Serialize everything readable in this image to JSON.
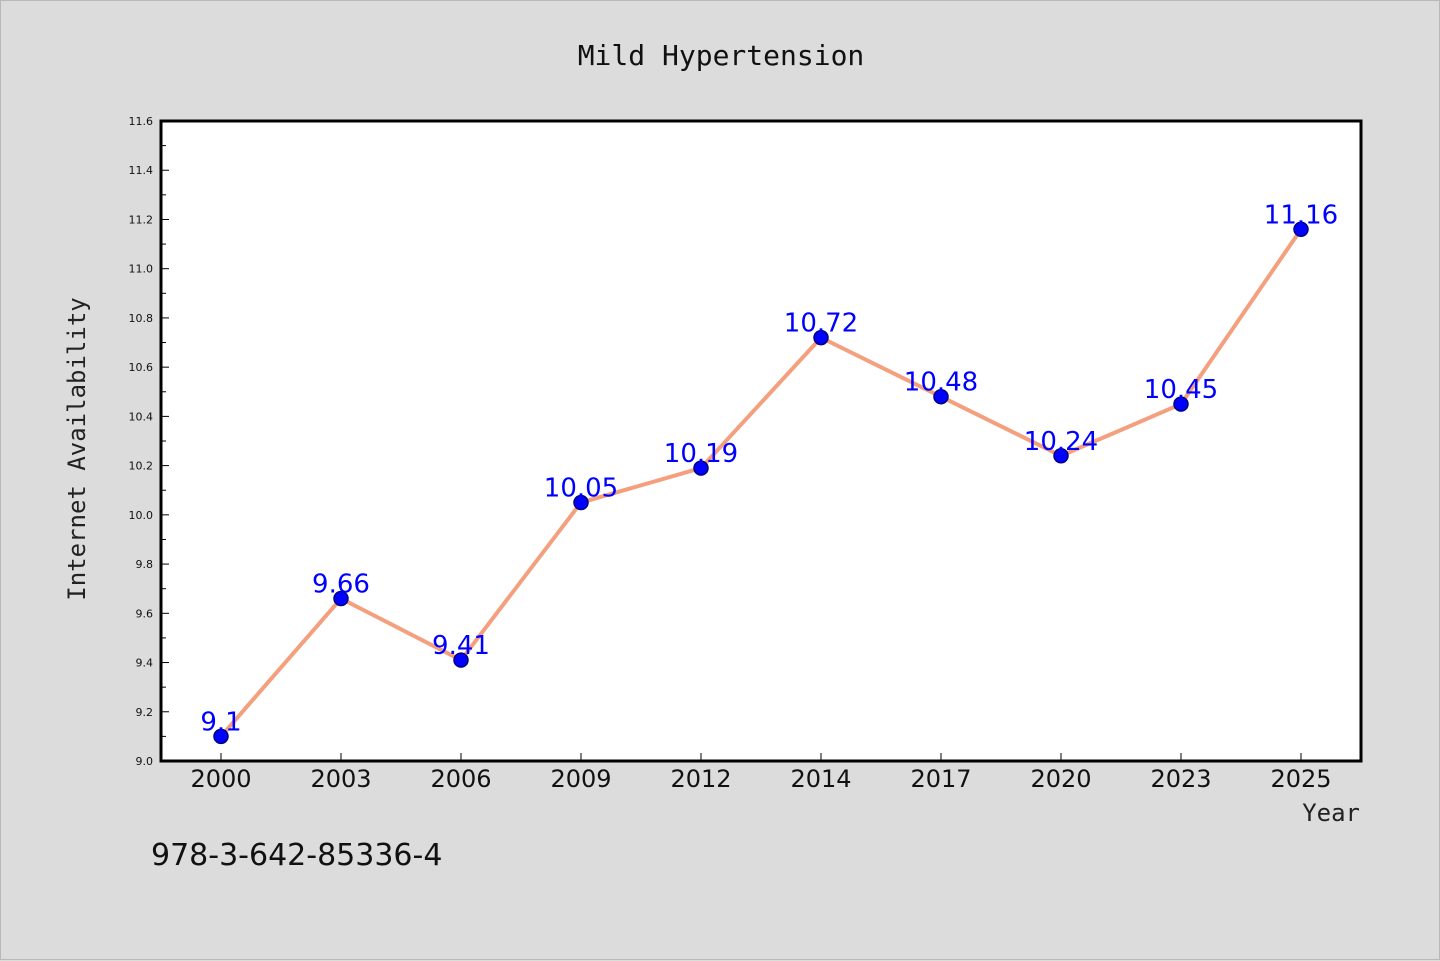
{
  "chart_data": {
    "type": "line",
    "title": "Mild Hypertension",
    "xlabel": "Year",
    "ylabel": "Internet Availability",
    "categories": [
      "2000",
      "2003",
      "2006",
      "2009",
      "2012",
      "2014",
      "2017",
      "2020",
      "2023",
      "2025"
    ],
    "series": [
      {
        "values": [
          9.1,
          9.66,
          9.41,
          10.05,
          10.19,
          10.72,
          10.48,
          10.24,
          10.45,
          11.16
        ],
        "data_labels": [
          "9.1",
          "9.66",
          "9.41",
          "10.05",
          "10.19",
          "10.72",
          "10.48",
          "10.24",
          "10.45",
          "11.16"
        ],
        "line_color": "#f4a07e",
        "marker_color": "#0000ff",
        "marker_edge": "#000080"
      }
    ],
    "ylim": [
      9.0,
      11.6
    ],
    "yticks": [
      "9.0",
      "9.2",
      "9.4",
      "9.6",
      "9.8",
      "10.0",
      "10.2",
      "10.4",
      "10.6",
      "10.8",
      "11.0",
      "11.2",
      "11.4",
      "11.6"
    ],
    "grid": false,
    "label_color": "#0000ff",
    "background": "#dcdcdc",
    "plot_background": "#ffffff"
  },
  "footer": {
    "isbn": "978-3-642-85336-4"
  }
}
